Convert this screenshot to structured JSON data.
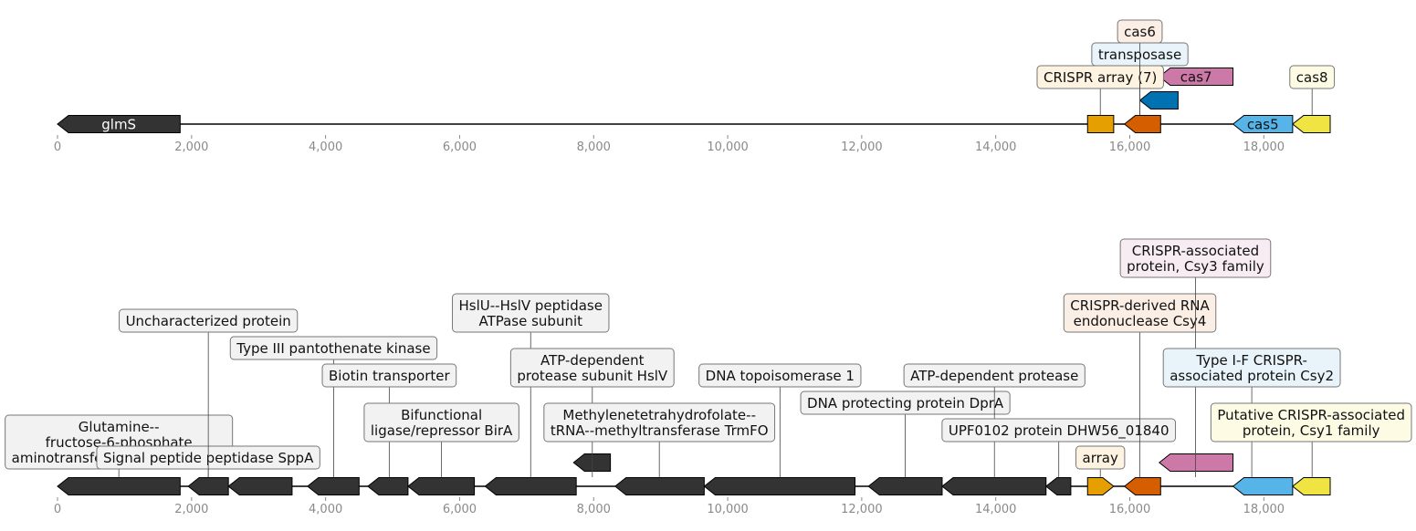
{
  "tracks": [
    {
      "id": "top",
      "genes": [
        {
          "start": 0,
          "end": 1830,
          "strand": -1,
          "color": "#333333",
          "inlabel": "glmS",
          "intext": "#ffffff"
        },
        {
          "start": 15370,
          "end": 15760,
          "strand": 0,
          "color": "#E69F00"
        },
        {
          "start": 15920,
          "end": 16460,
          "strand": -1,
          "color": "#D55E00"
        },
        {
          "start": 16150,
          "end": 16720,
          "strand": -1,
          "color": "#0072B2"
        },
        {
          "start": 16440,
          "end": 17540,
          "strand": -1,
          "color": "#CC79A7",
          "inlabel": "cas7",
          "intext": "#111111"
        },
        {
          "start": 17540,
          "end": 18430,
          "strand": -1,
          "color": "#56B4E9",
          "inlabel": "cas5",
          "intext": "#111111"
        },
        {
          "start": 18430,
          "end": 18990,
          "strand": -1,
          "color": "#F0E442"
        }
      ],
      "labels": [
        {
          "text": "CRISPR array (7)",
          "anchor": 15560,
          "level": 0,
          "bg": "#fdf3e0"
        },
        {
          "text": "transposase",
          "anchor": 16150,
          "level": 1,
          "bg": "#e8f3fa"
        },
        {
          "text": "cas6",
          "anchor": 16150,
          "level": 2,
          "bg": "#fbeee5"
        },
        {
          "text": "cas8",
          "anchor": 18720,
          "level": 0,
          "bg": "#fdfbe3"
        }
      ]
    },
    {
      "id": "bottom",
      "genes": [
        {
          "start": 0,
          "end": 1830,
          "strand": -1,
          "color": "#333333"
        },
        {
          "start": 1950,
          "end": 2550,
          "strand": -1,
          "color": "#333333"
        },
        {
          "start": 2550,
          "end": 3500,
          "strand": -1,
          "color": "#333333"
        },
        {
          "start": 3730,
          "end": 4500,
          "strand": -1,
          "color": "#333333"
        },
        {
          "start": 4630,
          "end": 5230,
          "strand": -1,
          "color": "#333333"
        },
        {
          "start": 5230,
          "end": 6220,
          "strand": -1,
          "color": "#333333"
        },
        {
          "start": 6380,
          "end": 7740,
          "strand": -1,
          "color": "#333333"
        },
        {
          "start": 7700,
          "end": 8250,
          "strand": -1,
          "color": "#333333"
        },
        {
          "start": 8320,
          "end": 9650,
          "strand": -1,
          "color": "#333333"
        },
        {
          "start": 9650,
          "end": 11900,
          "strand": -1,
          "color": "#333333"
        },
        {
          "start": 12100,
          "end": 13200,
          "strand": -1,
          "color": "#333333"
        },
        {
          "start": 13200,
          "end": 14750,
          "strand": -1,
          "color": "#333333"
        },
        {
          "start": 14750,
          "end": 15120,
          "strand": -1,
          "color": "#333333"
        },
        {
          "start": 15370,
          "end": 15760,
          "strand": 1,
          "color": "#E69F00"
        },
        {
          "start": 15920,
          "end": 16460,
          "strand": -1,
          "color": "#D55E00"
        },
        {
          "start": 16440,
          "end": 17540,
          "strand": -1,
          "color": "#CC79A7"
        },
        {
          "start": 17540,
          "end": 18430,
          "strand": -1,
          "color": "#56B4E9"
        },
        {
          "start": 18430,
          "end": 18990,
          "strand": -1,
          "color": "#F0E442"
        }
      ],
      "labels": [
        {
          "text": "Glutamine--\nfructose-6-phosphate\naminotransferase [isomerizing]",
          "anchor": 915,
          "level": 0,
          "lines": 3,
          "bg": "#f2f2f2",
          "y_offset": 0
        },
        {
          "text": "Signal peptide peptidase SppA",
          "anchor": 2250,
          "level": 0,
          "bg": "#f2f2f2"
        },
        {
          "text": "Uncharacterized protein",
          "anchor": 2250,
          "level": 5,
          "bg": "#f2f2f2"
        },
        {
          "text": "Type III pantothenate kinase",
          "anchor": 4120,
          "level": 4,
          "bg": "#f2f2f2"
        },
        {
          "text": "Biotin transporter",
          "anchor": 4950,
          "level": 3,
          "bg": "#f2f2f2"
        },
        {
          "text": "Bifunctional\nligase/repressor BirA",
          "anchor": 5730,
          "level": 1,
          "lines": 2,
          "bg": "#f2f2f2"
        },
        {
          "text": "HslU--HslV peptidase\nATPase subunit",
          "anchor": 7060,
          "level": 5,
          "lines": 2,
          "bg": "#f2f2f2"
        },
        {
          "text": "ATP-dependent\nprotease subunit HslV",
          "anchor": 7980,
          "level": 3,
          "lines": 2,
          "bg": "#f2f2f2"
        },
        {
          "text": "Methylenetetrahydrofolate--\ntRNA--methyltransferase TrmFO",
          "anchor": 8980,
          "level": 1,
          "lines": 2,
          "bg": "#f2f2f2"
        },
        {
          "text": "DNA topoisomerase 1",
          "anchor": 10780,
          "level": 3,
          "bg": "#f2f2f2"
        },
        {
          "text": "DNA protecting protein DprA",
          "anchor": 12650,
          "level": 2,
          "bg": "#f2f2f2"
        },
        {
          "text": "ATP-dependent protease",
          "anchor": 13980,
          "level": 3,
          "bg": "#f2f2f2"
        },
        {
          "text": "UPF0102 protein DHW56_01840",
          "anchor": 14940,
          "level": 1,
          "bg": "#f2f2f2"
        },
        {
          "text": "array",
          "anchor": 15560,
          "level": 0,
          "bg": "#fdf3e0"
        },
        {
          "text": "CRISPR-derived RNA\nendonuclease Csy4",
          "anchor": 16150,
          "level": 5,
          "lines": 2,
          "bg": "#fbeee5"
        },
        {
          "text": "CRISPR-associated\nprotein, Csy3 family",
          "anchor": 16980,
          "level": 7,
          "lines": 2,
          "bg": "#f8ecf3"
        },
        {
          "text": "Type I-F CRISPR-\nassociated protein Csy2",
          "anchor": 17820,
          "level": 3,
          "lines": 2,
          "bg": "#e8f3fa"
        },
        {
          "text": "Putative CRISPR-associated\nprotein, Csy1 family",
          "anchor": 18720,
          "level": 1,
          "lines": 2,
          "bg": "#fdfbe3"
        }
      ]
    }
  ],
  "axis": {
    "min": 0,
    "max": 18990,
    "ticks": [
      0,
      2000,
      4000,
      6000,
      8000,
      10000,
      12000,
      14000,
      16000,
      18000
    ],
    "tick_labels": [
      "0",
      "2,000",
      "4,000",
      "6,000",
      "8,000",
      "10,000",
      "12,000",
      "14,000",
      "16,000",
      "18,000"
    ]
  }
}
